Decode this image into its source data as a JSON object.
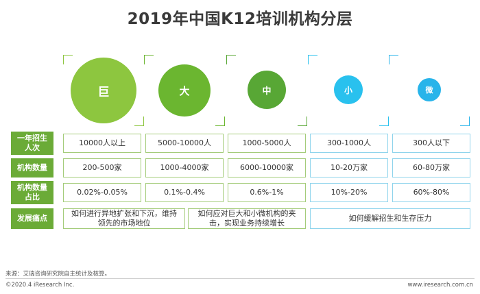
{
  "title": "2019年中国K12培训机构分层",
  "tiers": [
    {
      "label": "巨",
      "color": "#8dc63f"
    },
    {
      "label": "大",
      "color": "#6bb630"
    },
    {
      "label": "中",
      "color": "#58a735"
    },
    {
      "label": "小",
      "color": "#29c1ee"
    },
    {
      "label": "微",
      "color": "#28b4ea"
    }
  ],
  "row_headers": [
    "一年招生人次",
    "机构数量",
    "机构数量占比",
    "发展痛点"
  ],
  "rows": {
    "students": [
      "10000人以上",
      "5000-10000人",
      "1000-5000人",
      "300-1000人",
      "300人以下"
    ],
    "count": [
      "200-500家",
      "1000-4000家",
      "6000-10000家",
      "10-20万家",
      "60-80万家"
    ],
    "share": [
      "0.02%-0.05%",
      "0.1%-0.4%",
      "0.6%-1%",
      "10%-20%",
      "60%-80%"
    ]
  },
  "pain_points": {
    "giant": "如何进行异地扩张和下沉，维持领先的市场地位",
    "large_mid": "如何应对巨大和小微机构的夹击，实现业务持续增长",
    "small_micro": "如何缓解招生和生存压力"
  },
  "source": "来源：艾瑞咨询研究院自主统计及核算。",
  "copyright": "©2020.4 iResearch Inc.",
  "website": "www.iresearch.com.cn"
}
